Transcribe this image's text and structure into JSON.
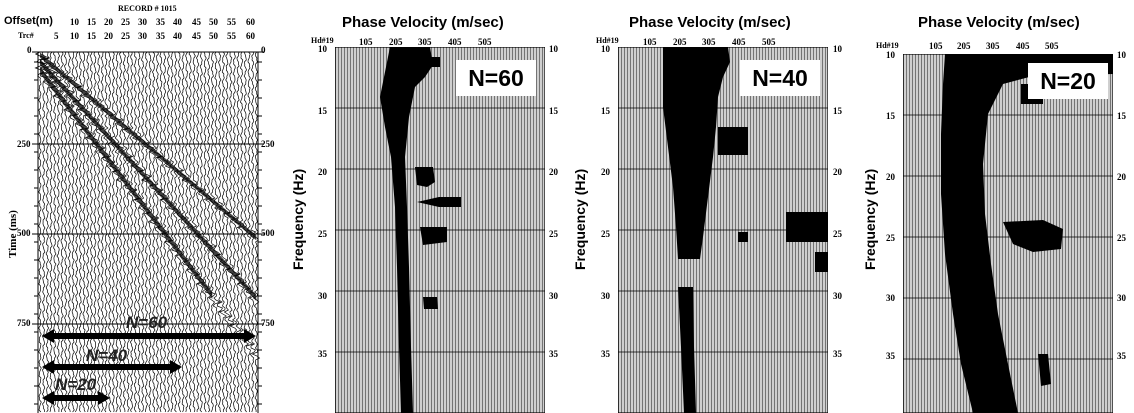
{
  "seismic": {
    "record_title": "RECORD # 1015",
    "offset_label": "Offset(m)",
    "trace_label": "Trc#",
    "offset_ticks": [
      "10",
      "15",
      "20",
      "25",
      "30",
      "35",
      "40",
      "45",
      "50",
      "55",
      "60"
    ],
    "trace_ticks": [
      "5",
      "10",
      "15",
      "20",
      "25",
      "30",
      "35",
      "40",
      "45",
      "50",
      "55",
      "60"
    ],
    "time_axis_label": "Time (ms)",
    "time_ticks": [
      "0",
      "250",
      "500",
      "750"
    ],
    "arrows": [
      {
        "label": "N=60"
      },
      {
        "label": "N=40"
      },
      {
        "label": "N=20"
      }
    ]
  },
  "panels": [
    {
      "title": "Phase Velocity (m/sec)",
      "corner_label": "Hd#19",
      "velocity_ticks": [
        "105",
        "205",
        "305",
        "405",
        "505"
      ],
      "ylabel": "Frequency (Hz)",
      "freq_ticks": [
        "10",
        "15",
        "20",
        "25",
        "30",
        "35"
      ],
      "n_label": "N=60"
    },
    {
      "title": "Phase Velocity (m/sec)",
      "corner_label": "Hd#19",
      "velocity_ticks": [
        "105",
        "205",
        "305",
        "405",
        "505"
      ],
      "ylabel": "Frequency (Hz)",
      "freq_ticks": [
        "10",
        "15",
        "20",
        "25",
        "30",
        "35"
      ],
      "n_label": "N=40"
    },
    {
      "title": "Phase Velocity (m/sec)",
      "corner_label": "Hd#19",
      "velocity_ticks": [
        "105",
        "205",
        "305",
        "405",
        "505"
      ],
      "ylabel": "Frequency (Hz)",
      "freq_ticks": [
        "10",
        "15",
        "20",
        "25",
        "30",
        "35"
      ],
      "n_label": "N=20"
    }
  ]
}
